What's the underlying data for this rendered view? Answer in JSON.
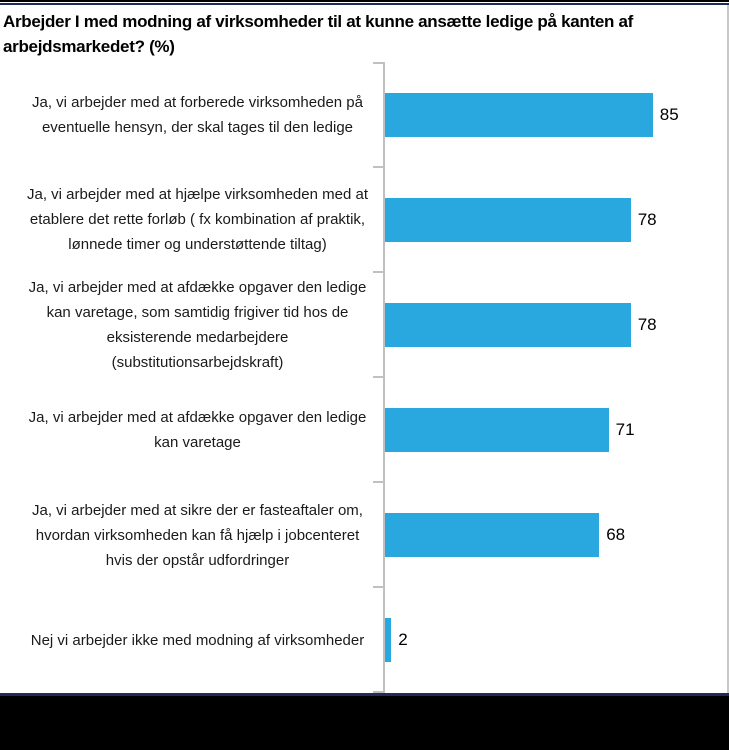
{
  "chart_data": {
    "type": "bar",
    "orientation": "horizontal",
    "title": "Arbejder I med modning af virksomheder til at kunne ansætte ledige på kanten af arbejdsmarkedet? (%)",
    "categories": [
      "Ja, vi arbejder med at forberede virksomheden på eventuelle hensyn, der skal tages til den ledige",
      "Ja, vi arbejder med at hjælpe virksomheden med at etablere det rette forløb ( fx kombination af praktik, lønnede timer og understøttende tiltag)",
      "Ja, vi arbejder med at afdække opgaver den ledige kan varetage, som samtidig frigiver tid hos de eksisterende medarbejdere (substitutionsarbejdskraft)",
      "Ja, vi arbejder med at afdække opgaver den ledige kan varetage",
      "Ja, vi arbejder med at sikre der er fasteaftaler om, hvordan virksomheden kan få hjælp i jobcenteret hvis der opstår udfordringer",
      "Nej vi arbejder ikke med modning af virksomheder"
    ],
    "values": [
      85,
      78,
      78,
      71,
      68,
      2
    ],
    "xlabel": "",
    "ylabel": "",
    "xlim": [
      0,
      90
    ],
    "grid": false,
    "legend": false,
    "value_labels": true,
    "bar_color": "#29A8E0",
    "axis_color": "#C0C0C0"
  },
  "frame": {
    "top_border_color": "#1F2B5B",
    "bottom_border_color": "#1F2B5B",
    "band_color": "#000000"
  }
}
